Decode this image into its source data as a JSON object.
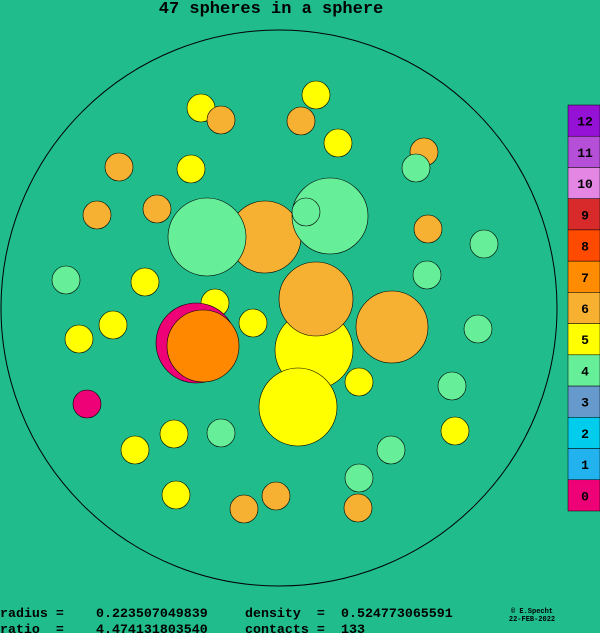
{
  "title": "47 spheres in a sphere",
  "legend": [
    "12",
    "11",
    "10",
    "9",
    "8",
    "7",
    "6",
    "5",
    "4",
    "3",
    "2",
    "1",
    "0"
  ],
  "stats": [
    [
      "radius =",
      "0.223507049839",
      "density  =",
      "0.524773065591"
    ],
    [
      "ratio  =",
      "4.474131803540",
      "contacts =",
      "133"
    ]
  ],
  "credit": [
    "© E.Specht",
    "22-FEB-2022"
  ]
}
